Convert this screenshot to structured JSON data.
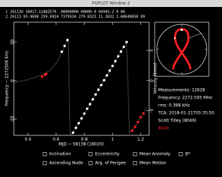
{
  "window_title": "PGPLOT Window 2",
  "header": {
    "line1": "1 26113U          18017.11882579  .00000000  00000-0  66945-2 0    06",
    "line2": "2 26113  93.9698 259.6924 7379534 279.8323  11.3832  1.68648058    09"
  },
  "info": [
    "Measurements: 12628",
    "Frequency: 2272.505 MHz",
    "rms: 0.388 kHz",
    "TCA: 2018-01-21T05:35:50",
    "Scott Tilley (8049)"
  ],
  "site": {
    "text": "8049",
    "color": "#ff2020"
  },
  "options": [
    "Inclination",
    "Eccentricity",
    "Mean Anomaly",
    "B*",
    "Ascending Node",
    "Arg. of Perigee",
    "Mean Motion"
  ],
  "chart_data": {
    "type": "line",
    "xlabel": "MJD − 58138 (18020)",
    "ylabel": "Frequency − 2272506 kHz",
    "y2label": "Velocity (km/s)",
    "xlim": [
      0.3,
      1.26
    ],
    "xticks": [
      0.4,
      0.6,
      0.8,
      1,
      1.2
    ],
    "ylim": [
      -28.4,
      30.3
    ],
    "yticks": [
      -20,
      0,
      20
    ],
    "y2lim": [
      -9.1,
      9.7
    ],
    "y2ticks": [
      -5,
      0,
      5
    ],
    "series": [
      {
        "color": "#9a9a9a",
        "style": "dashed",
        "x": [
          0.3,
          0.4,
          0.5,
          0.55,
          0.6,
          0.65,
          0.685,
          0.7,
          0.72,
          0.8,
          0.9,
          1.0,
          1.1,
          1.12,
          1.16,
          1.2,
          1.24
        ],
        "values": [
          -1,
          0.5,
          3,
          5,
          9,
          16,
          22,
          -28,
          -27,
          -17.1,
          -4.7,
          7.6,
          20,
          -27,
          -24,
          -19,
          -14
        ]
      },
      {
        "color": "#ffffff",
        "style": "markers",
        "x": [
          0.64,
          0.66,
          0.68,
          0.72,
          0.74,
          0.76,
          0.78,
          0.8,
          0.82,
          0.84,
          0.86,
          0.88,
          0.9,
          0.92,
          0.94,
          0.96,
          0.98,
          1.0,
          1.02,
          1.04,
          1.06,
          1.08,
          1.1
        ],
        "values": [
          15,
          18,
          21,
          -27,
          -24.5,
          -22.1,
          -19.6,
          -17.1,
          -14.6,
          -12.2,
          -9.7,
          -7.2,
          -4.7,
          -2.3,
          0.2,
          2.7,
          5.2,
          7.6,
          10.1,
          12.6,
          15.1,
          17.5,
          20
        ]
      },
      {
        "color": "#ff2020",
        "style": "markers",
        "x": [
          0.5,
          0.52,
          0.53,
          1.14,
          1.16,
          1.18,
          1.2,
          1.22
        ],
        "values": [
          2,
          3,
          3.5,
          -26,
          -24,
          -21.5,
          -19,
          -17
        ]
      }
    ]
  }
}
